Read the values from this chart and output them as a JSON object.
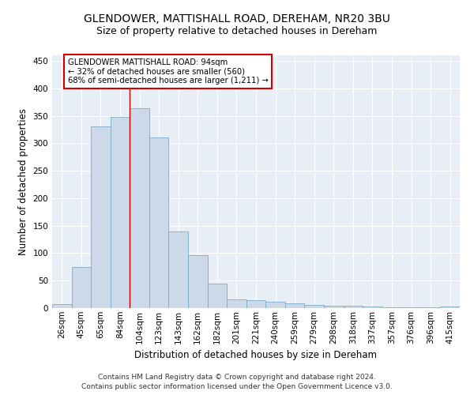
{
  "title1": "GLENDOWER, MATTISHALL ROAD, DEREHAM, NR20 3BU",
  "title2": "Size of property relative to detached houses in Dereham",
  "xlabel": "Distribution of detached houses by size in Dereham",
  "ylabel": "Number of detached properties",
  "categories": [
    "26sqm",
    "45sqm",
    "65sqm",
    "84sqm",
    "104sqm",
    "123sqm",
    "143sqm",
    "162sqm",
    "182sqm",
    "201sqm",
    "221sqm",
    "240sqm",
    "259sqm",
    "279sqm",
    "298sqm",
    "318sqm",
    "337sqm",
    "357sqm",
    "376sqm",
    "396sqm",
    "415sqm"
  ],
  "values": [
    7,
    75,
    330,
    348,
    363,
    310,
    140,
    97,
    45,
    16,
    14,
    11,
    9,
    6,
    5,
    4,
    3,
    2,
    2,
    1,
    3
  ],
  "bar_color": "#ccd9e8",
  "bar_edge_color": "#7aaac8",
  "property_line_x": 3.5,
  "annotation_title": "GLENDOWER MATTISHALL ROAD: 94sqm",
  "annotation_line2": "← 32% of detached houses are smaller (560)",
  "annotation_line3": "68% of semi-detached houses are larger (1,211) →",
  "annotation_box_color": "#ffffff",
  "annotation_box_edge": "#cc0000",
  "vline_color": "#cc0000",
  "footer1": "Contains HM Land Registry data © Crown copyright and database right 2024.",
  "footer2": "Contains public sector information licensed under the Open Government Licence v3.0.",
  "ylim": [
    0,
    460
  ],
  "background_color": "#e8eef5",
  "grid_color": "#ffffff",
  "title1_fontsize": 10,
  "title2_fontsize": 9,
  "axis_label_fontsize": 8.5,
  "tick_fontsize": 7.5,
  "footer_fontsize": 6.5
}
